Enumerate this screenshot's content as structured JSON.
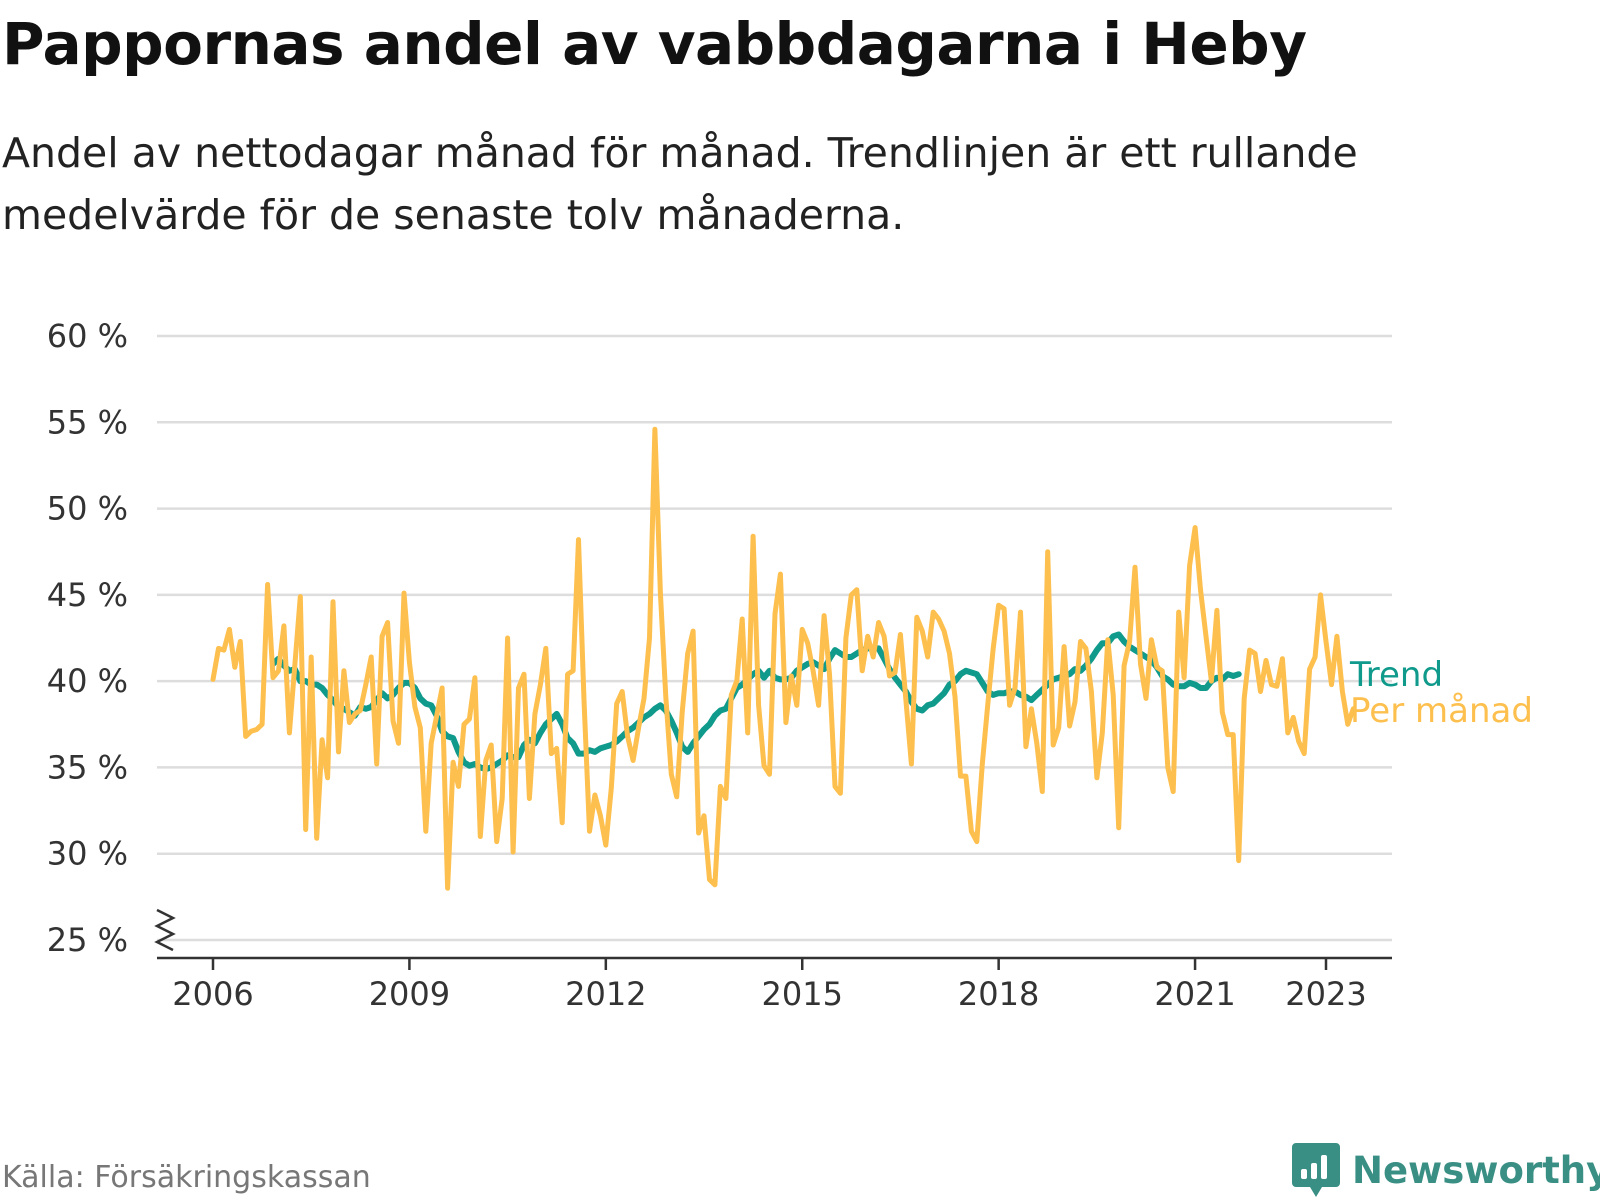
{
  "chart_data": {
    "type": "line",
    "title": "Pappornas andel av vabbdagarna i Heby",
    "subtitle": "Andel av nettodagar månad för månad. Trendlinjen är ett rullande medelvärde för de senaste tolv månaderna.",
    "xlabel": "",
    "ylabel": "",
    "ylim": [
      25,
      60
    ],
    "y_ticks": [
      25,
      30,
      35,
      40,
      45,
      50,
      55,
      60
    ],
    "y_tick_labels": [
      "25 %",
      "30 %",
      "35 %",
      "40 %",
      "45 %",
      "50 %",
      "55 %",
      "60 %"
    ],
    "x_ticks": [
      2006,
      2009,
      2012,
      2015,
      2018,
      2021,
      2023
    ],
    "x_tick_labels": [
      "2006",
      "2009",
      "2012",
      "2015",
      "2018",
      "2021",
      "2023"
    ],
    "grid": true,
    "axis_break": true,
    "series": [
      {
        "name": "Per månad",
        "legend_label": "Per månad",
        "color": "#fdbf4d",
        "start": 2006.0,
        "step": 0.0833333,
        "values": [
          40.1,
          41.9,
          41.8,
          43.0,
          40.8,
          42.3,
          36.8,
          37.1,
          37.2,
          37.5,
          45.6,
          40.2,
          40.6,
          43.2,
          37.0,
          40.9,
          44.9,
          31.4,
          41.4,
          30.9,
          36.6,
          34.4,
          44.6,
          35.9,
          40.6,
          37.6,
          38.1,
          38.3,
          39.8,
          41.4,
          35.2,
          42.6,
          43.4,
          37.7,
          36.4,
          45.1,
          41.1,
          38.5,
          37.3,
          31.3,
          36.4,
          38.0,
          39.6,
          28.0,
          35.3,
          33.9,
          37.5,
          37.8,
          40.2,
          31.0,
          35.4,
          36.3,
          30.7,
          33.2,
          42.5,
          30.1,
          39.6,
          40.4,
          33.2,
          38.1,
          39.8,
          41.9,
          35.8,
          36.1,
          31.8,
          40.4,
          40.6,
          48.2,
          38.9,
          31.3,
          33.4,
          32.2,
          30.5,
          33.8,
          38.7,
          39.4,
          36.8,
          35.4,
          37.3,
          39.0,
          42.5,
          54.6,
          45.1,
          39.1,
          34.6,
          33.3,
          38.2,
          41.6,
          42.9,
          31.2,
          32.2,
          28.5,
          28.2,
          33.9,
          33.2,
          39.2,
          40.0,
          43.6,
          37.0,
          48.4,
          38.6,
          35.1,
          34.6,
          43.9,
          46.2,
          37.6,
          40.3,
          38.6,
          43.0,
          42.2,
          40.6,
          38.6,
          43.8,
          40.4,
          33.9,
          33.5,
          42.5,
          45.0,
          45.3,
          40.6,
          42.6,
          41.4,
          43.4,
          42.6,
          40.3,
          40.5,
          42.7,
          38.9,
          35.2,
          43.7,
          42.9,
          41.4,
          44.0,
          43.6,
          42.9,
          41.6,
          39.1,
          34.5,
          34.5,
          31.3,
          30.7,
          35.2,
          38.6,
          41.9,
          44.4,
          44.2,
          38.6,
          39.6,
          44.0,
          36.2,
          38.4,
          36.4,
          33.6,
          47.5,
          36.3,
          37.3,
          42.0,
          37.4,
          38.8,
          42.3,
          41.9,
          39.4,
          34.4,
          37.0,
          42.4,
          39.2,
          31.5,
          40.9,
          42.3,
          46.6,
          41.0,
          39.0,
          42.4,
          40.8,
          40.6,
          35.0,
          33.6,
          44.0,
          40.2,
          46.7,
          48.9,
          45.3,
          42.6,
          40.0,
          44.1,
          38.2,
          36.9,
          36.9,
          29.6,
          39.0,
          41.8,
          41.6,
          39.4,
          41.2,
          39.8,
          39.7,
          41.3,
          37.0,
          37.9,
          36.5,
          35.8,
          40.7,
          41.4,
          45.0,
          42.3,
          39.8,
          42.6,
          39.4,
          37.5,
          38.4
        ]
      },
      {
        "name": "Trend",
        "legend_label": "Trend",
        "color": "#0f9a8c",
        "start": 2006.9167,
        "step": 0.0833333,
        "values": [
          41.0,
          41.3,
          40.9,
          40.6,
          40.7,
          40.0,
          40.0,
          39.8,
          39.8,
          39.6,
          39.2,
          38.9,
          38.5,
          38.4,
          38.2,
          38.0,
          38.5,
          38.4,
          38.5,
          38.9,
          39.3,
          39.0,
          39.2,
          39.6,
          39.9,
          39.9,
          39.6,
          39.0,
          38.7,
          38.6,
          38.0,
          37.1,
          36.8,
          36.7,
          35.9,
          35.3,
          35.1,
          35.2,
          35.0,
          34.9,
          35.0,
          35.2,
          35.4,
          35.7,
          35.6,
          35.6,
          36.3,
          36.6,
          36.4,
          37.0,
          37.5,
          37.8,
          38.1,
          37.5,
          36.7,
          36.4,
          35.8,
          35.8,
          36.0,
          35.9,
          36.1,
          36.2,
          36.3,
          36.5,
          36.8,
          37.1,
          37.3,
          37.6,
          37.9,
          38.1,
          38.4,
          38.6,
          38.3,
          37.7,
          37.0,
          36.2,
          35.9,
          36.4,
          36.8,
          37.2,
          37.5,
          38.0,
          38.3,
          38.4,
          39.0,
          39.6,
          39.8,
          40.1,
          40.4,
          40.6,
          40.2,
          40.6,
          40.2,
          40.1,
          40.1,
          40.2,
          40.6,
          40.8,
          41.0,
          41.1,
          40.9,
          40.7,
          41.3,
          41.8,
          41.6,
          41.4,
          41.4,
          41.6,
          41.8,
          41.9,
          41.9,
          41.9,
          41.3,
          40.7,
          40.2,
          39.8,
          39.4,
          38.8,
          38.4,
          38.3,
          38.6,
          38.7,
          39.0,
          39.3,
          39.8,
          40.0,
          40.4,
          40.6,
          40.5,
          40.4,
          39.9,
          39.4,
          39.2,
          39.3,
          39.3,
          39.4,
          39.4,
          39.2,
          39.1,
          38.9,
          39.2,
          39.5,
          39.8,
          40.1,
          40.2,
          40.3,
          40.4,
          40.7,
          40.6,
          40.9,
          41.3,
          41.8,
          42.2,
          42.2,
          42.6,
          42.7,
          42.3,
          42.0,
          41.8,
          41.6,
          41.4,
          41.2,
          40.8,
          40.3,
          40.1,
          39.8,
          39.7,
          39.7,
          39.9,
          39.8,
          39.6,
          39.6,
          40.0,
          40.2,
          40.1,
          40.4,
          40.3,
          40.4
        ]
      }
    ]
  },
  "source": "Källa: Försäkringskassan",
  "brand": "Newsworthy"
}
